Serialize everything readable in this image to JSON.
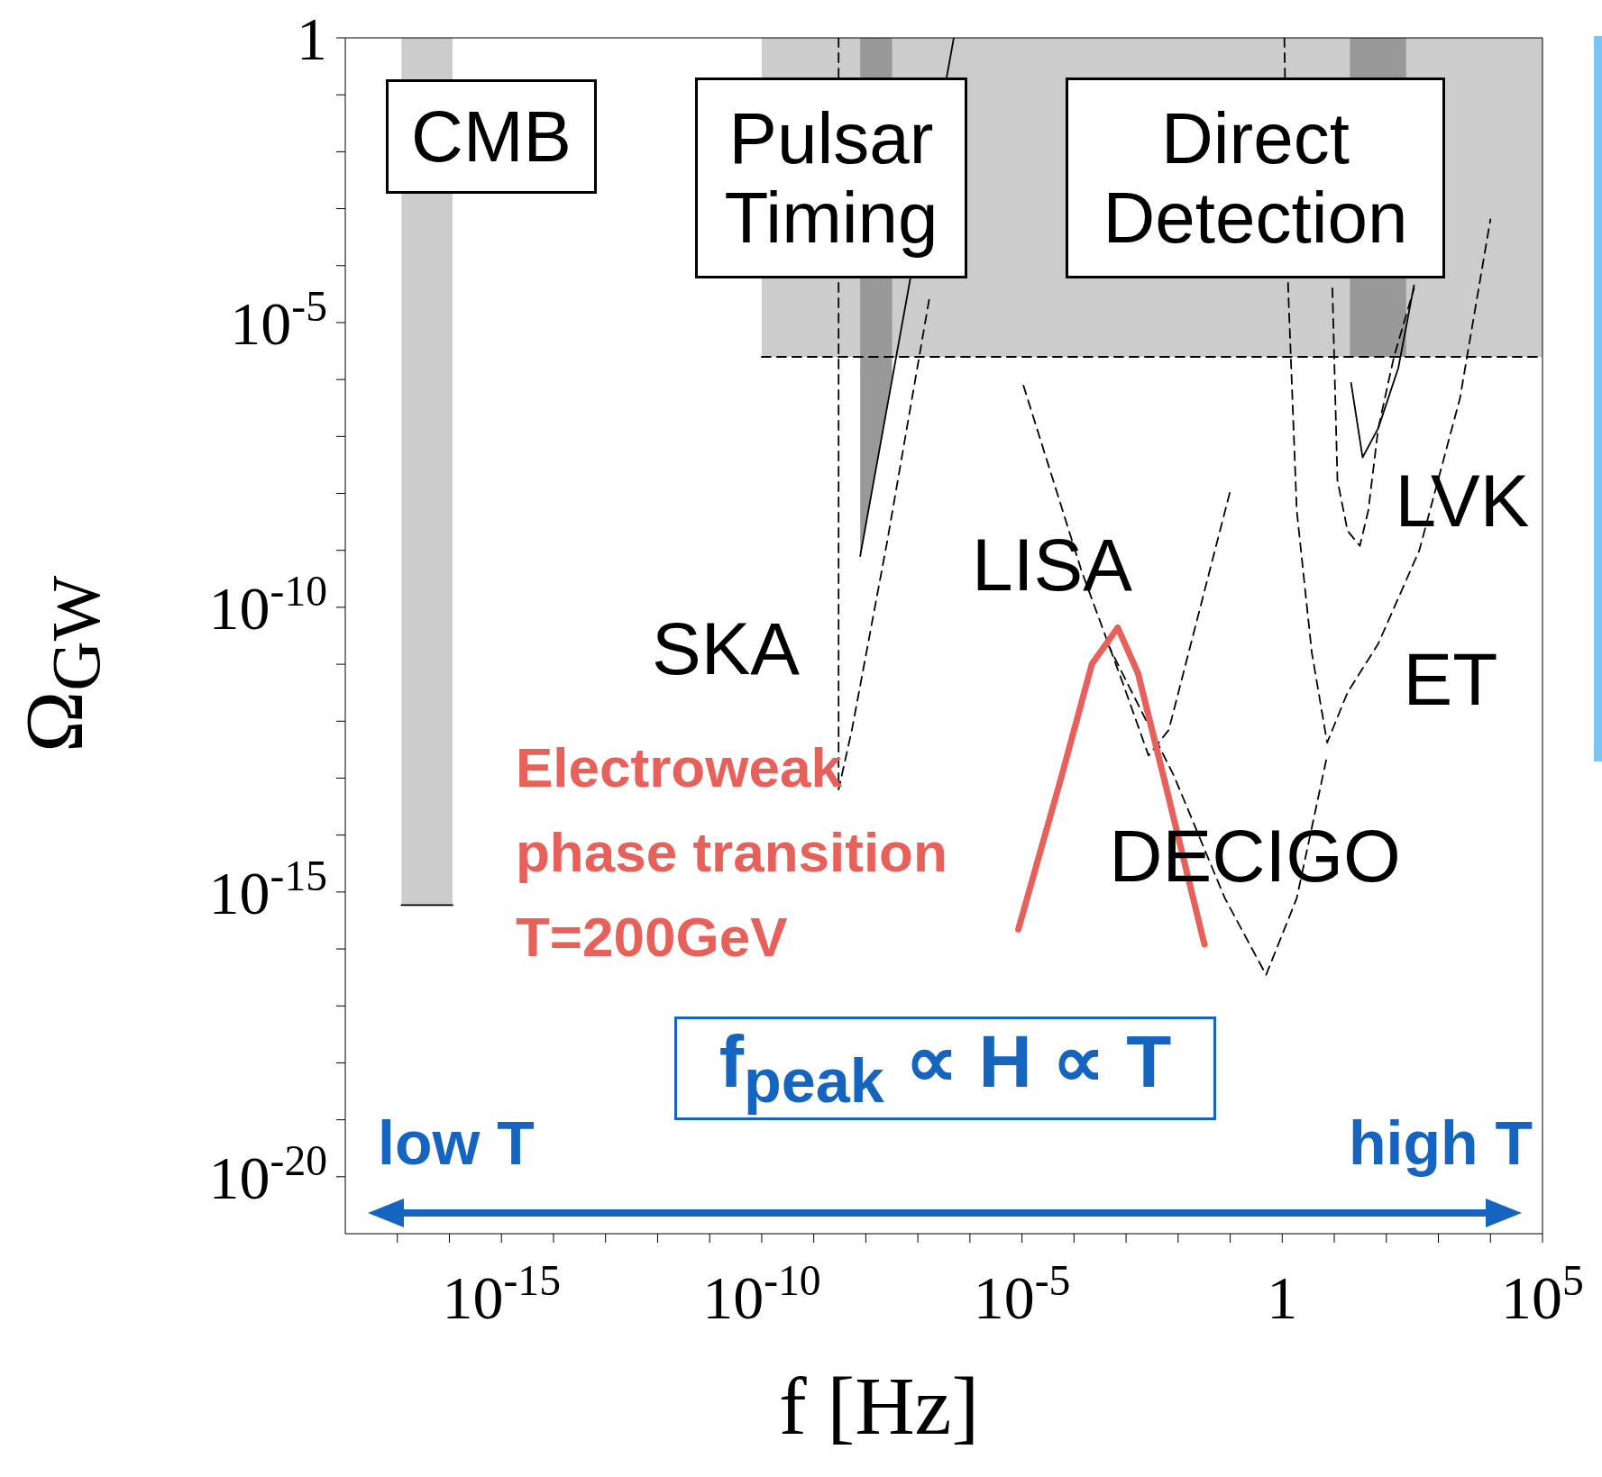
{
  "chart_data": {
    "type": "line",
    "xlabel": "f [Hz]",
    "ylabel": "Ω$_{GW}$",
    "log": "xy",
    "grid": false,
    "legend": false,
    "marker": "none",
    "line_style": "dashed",
    "xlim": [
      1e-18,
      100000.0
    ],
    "ylim": [
      1e-21,
      1
    ],
    "xticks": [
      {
        "value": 1e-17,
        "label": null
      },
      {
        "value": 1e-16,
        "label": null
      },
      {
        "value": 1e-15,
        "label": "10$^{-15}$"
      },
      {
        "value": 1e-14,
        "label": null
      },
      {
        "value": 1e-13,
        "label": null
      },
      {
        "value": 1e-12,
        "label": null
      },
      {
        "value": 1e-11,
        "label": null
      },
      {
        "value": 1e-10,
        "label": "10$^{-10}$"
      },
      {
        "value": 1e-09,
        "label": null
      },
      {
        "value": 1e-08,
        "label": null
      },
      {
        "value": 1e-07,
        "label": null
      },
      {
        "value": 1e-06,
        "label": null
      },
      {
        "value": 1e-05,
        "label": "10$^{-5}$"
      },
      {
        "value": 0.0001,
        "label": null
      },
      {
        "value": 0.001,
        "label": null
      },
      {
        "value": 0.01,
        "label": null
      },
      {
        "value": 0.1,
        "label": null
      },
      1,
      {
        "value": 10,
        "label": null
      },
      {
        "value": 100,
        "label": null
      },
      {
        "value": 1000,
        "label": null
      },
      {
        "value": 10000,
        "label": null
      },
      {
        "value": 100000.0,
        "label": "10$^{5}$"
      }
    ],
    "yticks": [
      {
        "value": 1e-20,
        "label": "10$^{-20}$"
      },
      {
        "value": 1e-19,
        "label": null
      },
      {
        "value": 1e-18,
        "label": null
      },
      {
        "value": 1e-17,
        "label": null
      },
      {
        "value": 1e-16,
        "label": null
      },
      {
        "value": 1e-15,
        "label": "10$^{-15}$"
      },
      {
        "value": 1e-14,
        "label": null
      },
      {
        "value": 1e-13,
        "label": null
      },
      {
        "value": 1e-12,
        "label": null
      },
      {
        "value": 1e-11,
        "label": null
      },
      {
        "value": 1e-10,
        "label": "10$^{-10}$"
      },
      {
        "value": 1e-09,
        "label": null
      },
      {
        "value": 1e-08,
        "label": null
      },
      {
        "value": 1e-07,
        "label": null
      },
      {
        "value": 1e-06,
        "label": null
      },
      {
        "value": 1e-05,
        "label": "10$^{-5}$"
      },
      {
        "value": 0.0001,
        "label": null
      },
      {
        "value": 0.001,
        "label": null
      },
      {
        "value": 0.01,
        "label": null
      },
      {
        "value": 0.1,
        "label": null
      },
      1
    ],
    "series": [
      {
        "color": "#cccccc",
        "x": [
          1.2e-17,
          1.15e-16
        ],
        "values": [
          null,
          null
        ],
        "lower": [
          5.9e-16,
          5.9e-16
        ],
        "upper": [
          1,
          1
        ]
      },
      {
        "color": "#cccccc",
        "x": [
          1e-10,
          100000.0
        ],
        "values": [
          null,
          null
        ],
        "lower": [
          2.5e-06,
          2.5e-06
        ],
        "upper": [
          1,
          1
        ]
      },
      {
        "color": "#999999",
        "x": [
          7.8e-09,
          3.2e-08
        ],
        "values": [
          null,
          null
        ],
        "lower": [
          7.9e-10,
          1.2e-06
        ],
        "upper": [
          1,
          1
        ]
      },
      {
        "color": "#999999",
        "x": [
          20,
          240
        ],
        "values": [
          null,
          null
        ],
        "lower": [
          2.5e-06,
          2.5e-06
        ],
        "upper": [
          1,
          1
        ]
      },
      {
        "color": "#000000",
        "x": [
          1e-10,
          100000.0
        ],
        "values": [
          2.5e-06,
          2.5e-06
        ]
      },
      {
        "color": "#000000",
        "line_style": "solid",
        "x": [
          1.2e-17,
          1.15e-16
        ],
        "values": [
          5.9e-16,
          5.9e-16
        ]
      },
      {
        "color": "#000000",
        "line_style": "solid",
        "x": [
          7.8e-09,
          4.9e-07
        ],
        "values": [
          7.9e-10,
          1
        ]
      },
      {
        "color": "#000000",
        "line_style": "solid",
        "x": [
          21,
          35,
          70,
          170,
          340
        ],
        "values": [
          8.7e-07,
          4.3e-08,
          1.4e-07,
          1.6e-06,
          4.5e-05
        ]
      },
      {
        "name": "SKA",
        "color": "#000000",
        "x": [
          3e-09,
          3e-09,
          5.4e-09,
          2.6e-08,
          1.7e-07
        ],
        "values": [
          1,
          6.3e-14,
          7e-13,
          1.5e-09,
          3e-05
        ]
      },
      {
        "name": "LISA",
        "color": "#000000",
        "x": [
          1.07e-05,
          0.00014,
          0.00087,
          0.0027,
          0.0066,
          0.1
        ],
        "values": [
          7.8e-07,
          4.3e-10,
          4.6e-12,
          2.5e-13,
          7e-13,
          1.1e-08
        ]
      },
      {
        "name": "DECIGO",
        "color": "#000000",
        "x": [
          0.00044,
          0.0083,
          0.079,
          0.49,
          1.9,
          7.3
        ],
        "values": [
          2.3e-11,
          1.1e-13,
          7.8e-16,
          3.5e-17,
          7.8e-16,
          2.5e-13
        ]
      },
      {
        "name": "ET",
        "color": "#000000",
        "x": [
          1.1,
          1.3,
          1.9,
          3.7,
          7.3,
          18,
          70,
          430,
          2600,
          10000
        ],
        "values": [
          1,
          4e-05,
          5e-09,
          1.6e-11,
          4.2e-13,
          3.2e-12,
          2.3e-11,
          1e-09,
          4.7e-07,
          0.00065
        ]
      },
      {
        "name": "LVK",
        "color": "#000000",
        "x": [
          9.2,
          11.5,
          18,
          31,
          45,
          70,
          140,
          340
        ],
        "values": [
          4e-05,
          1.7e-08,
          2.2e-09,
          1.2e-09,
          5e-09,
          1.4e-07,
          2.5e-06,
          4e-05
        ]
      },
      {
        "name": "Electroweak phase transition T=200GeV",
        "color": "#e8605a",
        "line_style": "solid",
        "x": [
          8.5e-06,
          5.8e-05,
          0.00022,
          0.00069,
          0.0017,
          0.0052,
          0.032
        ],
        "values": [
          2.2e-16,
          1.1e-13,
          1e-11,
          4.4e-11,
          6.9e-12,
          1.1e-13,
          1.2e-16
        ]
      }
    ],
    "annotations": [
      "CMB",
      "Pulsar Timing",
      "Direct Detection",
      "f$_{peak}$ ∝ H ∝ T",
      "low T",
      "high T"
    ]
  }
}
